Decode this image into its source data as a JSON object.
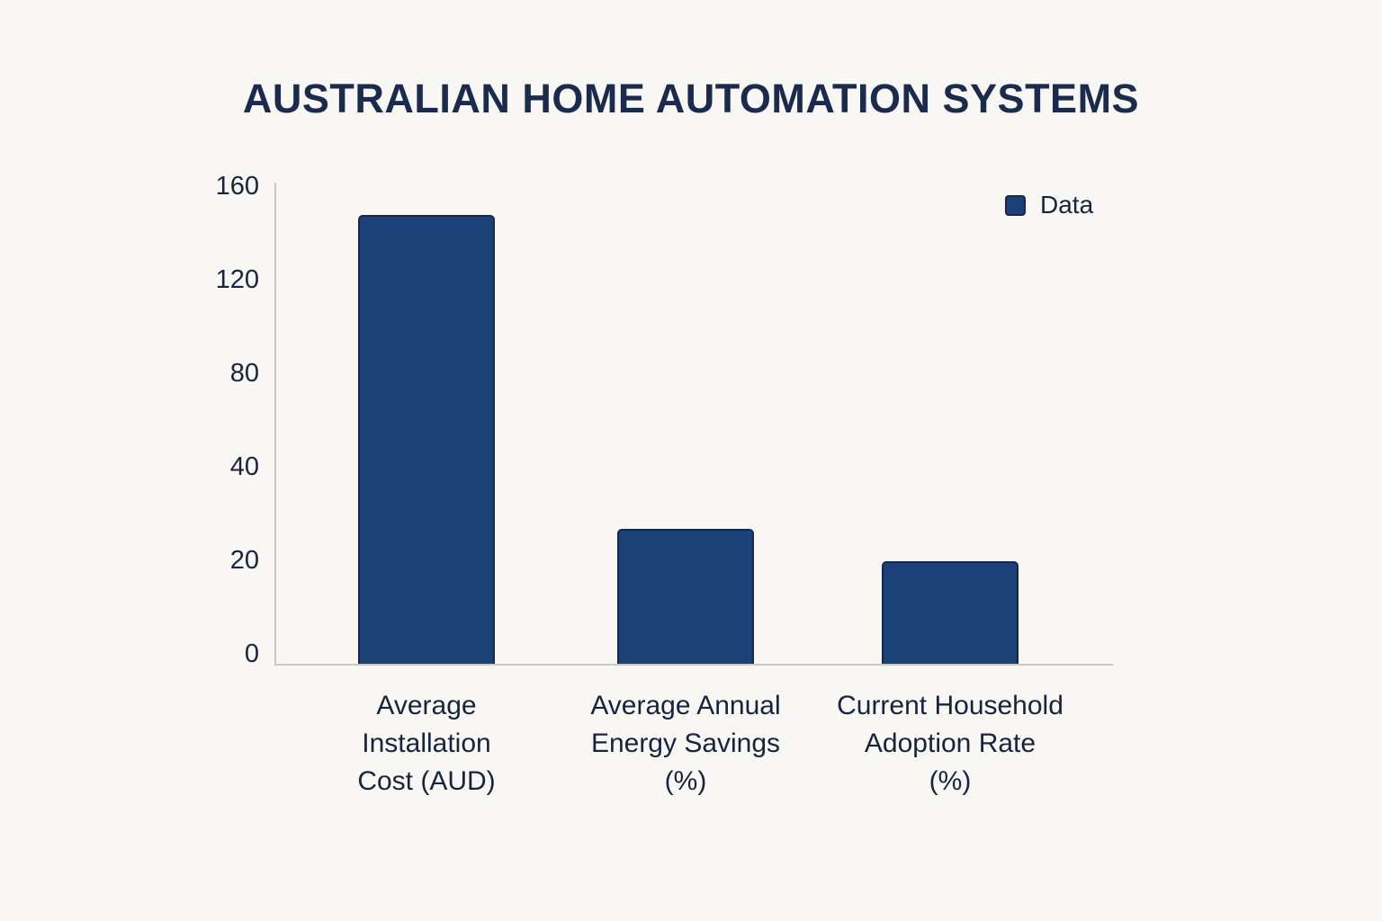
{
  "title": "AUSTRALIAN HOME AUTOMATION SYSTEMS",
  "legend": {
    "label": "Data"
  },
  "colors": {
    "background": "#f9f7f4",
    "bar_fill": "#1c4078",
    "bar_border": "#15294e",
    "text": "#16243e",
    "title_text": "#1a2b4e",
    "axis_line": "#cac8c4"
  },
  "chart_data": {
    "type": "bar",
    "title": "AUSTRALIAN HOME AUTOMATION SYSTEMS",
    "categories": [
      "Average Installation Cost (AUD)",
      "Average Annual Energy Savings (%)",
      "Current Household Adoption Rate (%)"
    ],
    "category_lines": [
      [
        "Average",
        "Installation",
        "Cost (AUD)"
      ],
      [
        "Average Annual",
        "Energy Savings",
        "(%)"
      ],
      [
        "Current Household",
        "Adoption Rate",
        "(%)"
      ]
    ],
    "series": [
      {
        "name": "Data",
        "values": [
          148,
          27,
          20
        ]
      }
    ],
    "values": [
      148,
      27,
      20
    ],
    "y_ticks": [
      160,
      120,
      80,
      40,
      20,
      0
    ],
    "xlabel": "",
    "ylabel": "",
    "ylim": [
      0,
      160
    ],
    "grid": false,
    "legend_position": "top-right",
    "axis_note": "y tick labels 0,20,40,80,120,160 are evenly spaced (non-linear scale as drawn)"
  }
}
